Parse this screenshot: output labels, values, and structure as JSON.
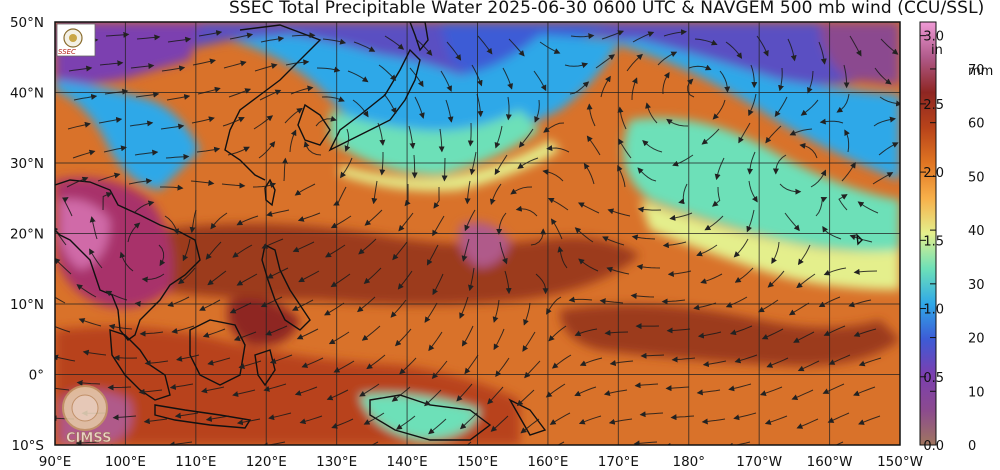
{
  "title": "SSEC Total Precipitable Water  2025-06-30 0600 UTC & NAVGEM 500 mb wind (CCU/SSL)",
  "map": {
    "lon_range": [
      90,
      210
    ],
    "lat_range": [
      -10,
      50
    ],
    "lat_labels": [
      "50°N",
      "40°N",
      "30°N",
      "20°N",
      "10°N",
      "0°",
      "10°S"
    ],
    "lon_labels": [
      "90°E",
      "100°E",
      "110°E",
      "120°E",
      "130°E",
      "140°E",
      "150°E",
      "160°E",
      "170°E",
      "180°",
      "170°W",
      "160°W",
      "150°W"
    ],
    "features": [
      "coastlines",
      "lat-lon-grid",
      "wind-streamlines",
      "tpw-color-field"
    ]
  },
  "colorbar": {
    "in_label": "in",
    "mm_label": "mm",
    "in_ticks": [
      "3.0",
      "2.5",
      "2.0",
      "1.5",
      "1.0",
      "0.5",
      "0.0"
    ],
    "mm_ticks": [
      "70",
      "60",
      "50",
      "40",
      "30",
      "20",
      "10",
      "0"
    ],
    "in_max": 3.1,
    "colors": [
      "#a0765f",
      "#8b4a8f",
      "#7b3fb0",
      "#3d5bd6",
      "#2fa8e8",
      "#6de0b8",
      "#e4ef8c",
      "#f7b04a",
      "#e07522",
      "#b8431a",
      "#8e2622",
      "#b05a8a",
      "#ef9ad6"
    ]
  },
  "logos": {
    "ssec": "SSEC",
    "cimss": "CIMSS"
  }
}
